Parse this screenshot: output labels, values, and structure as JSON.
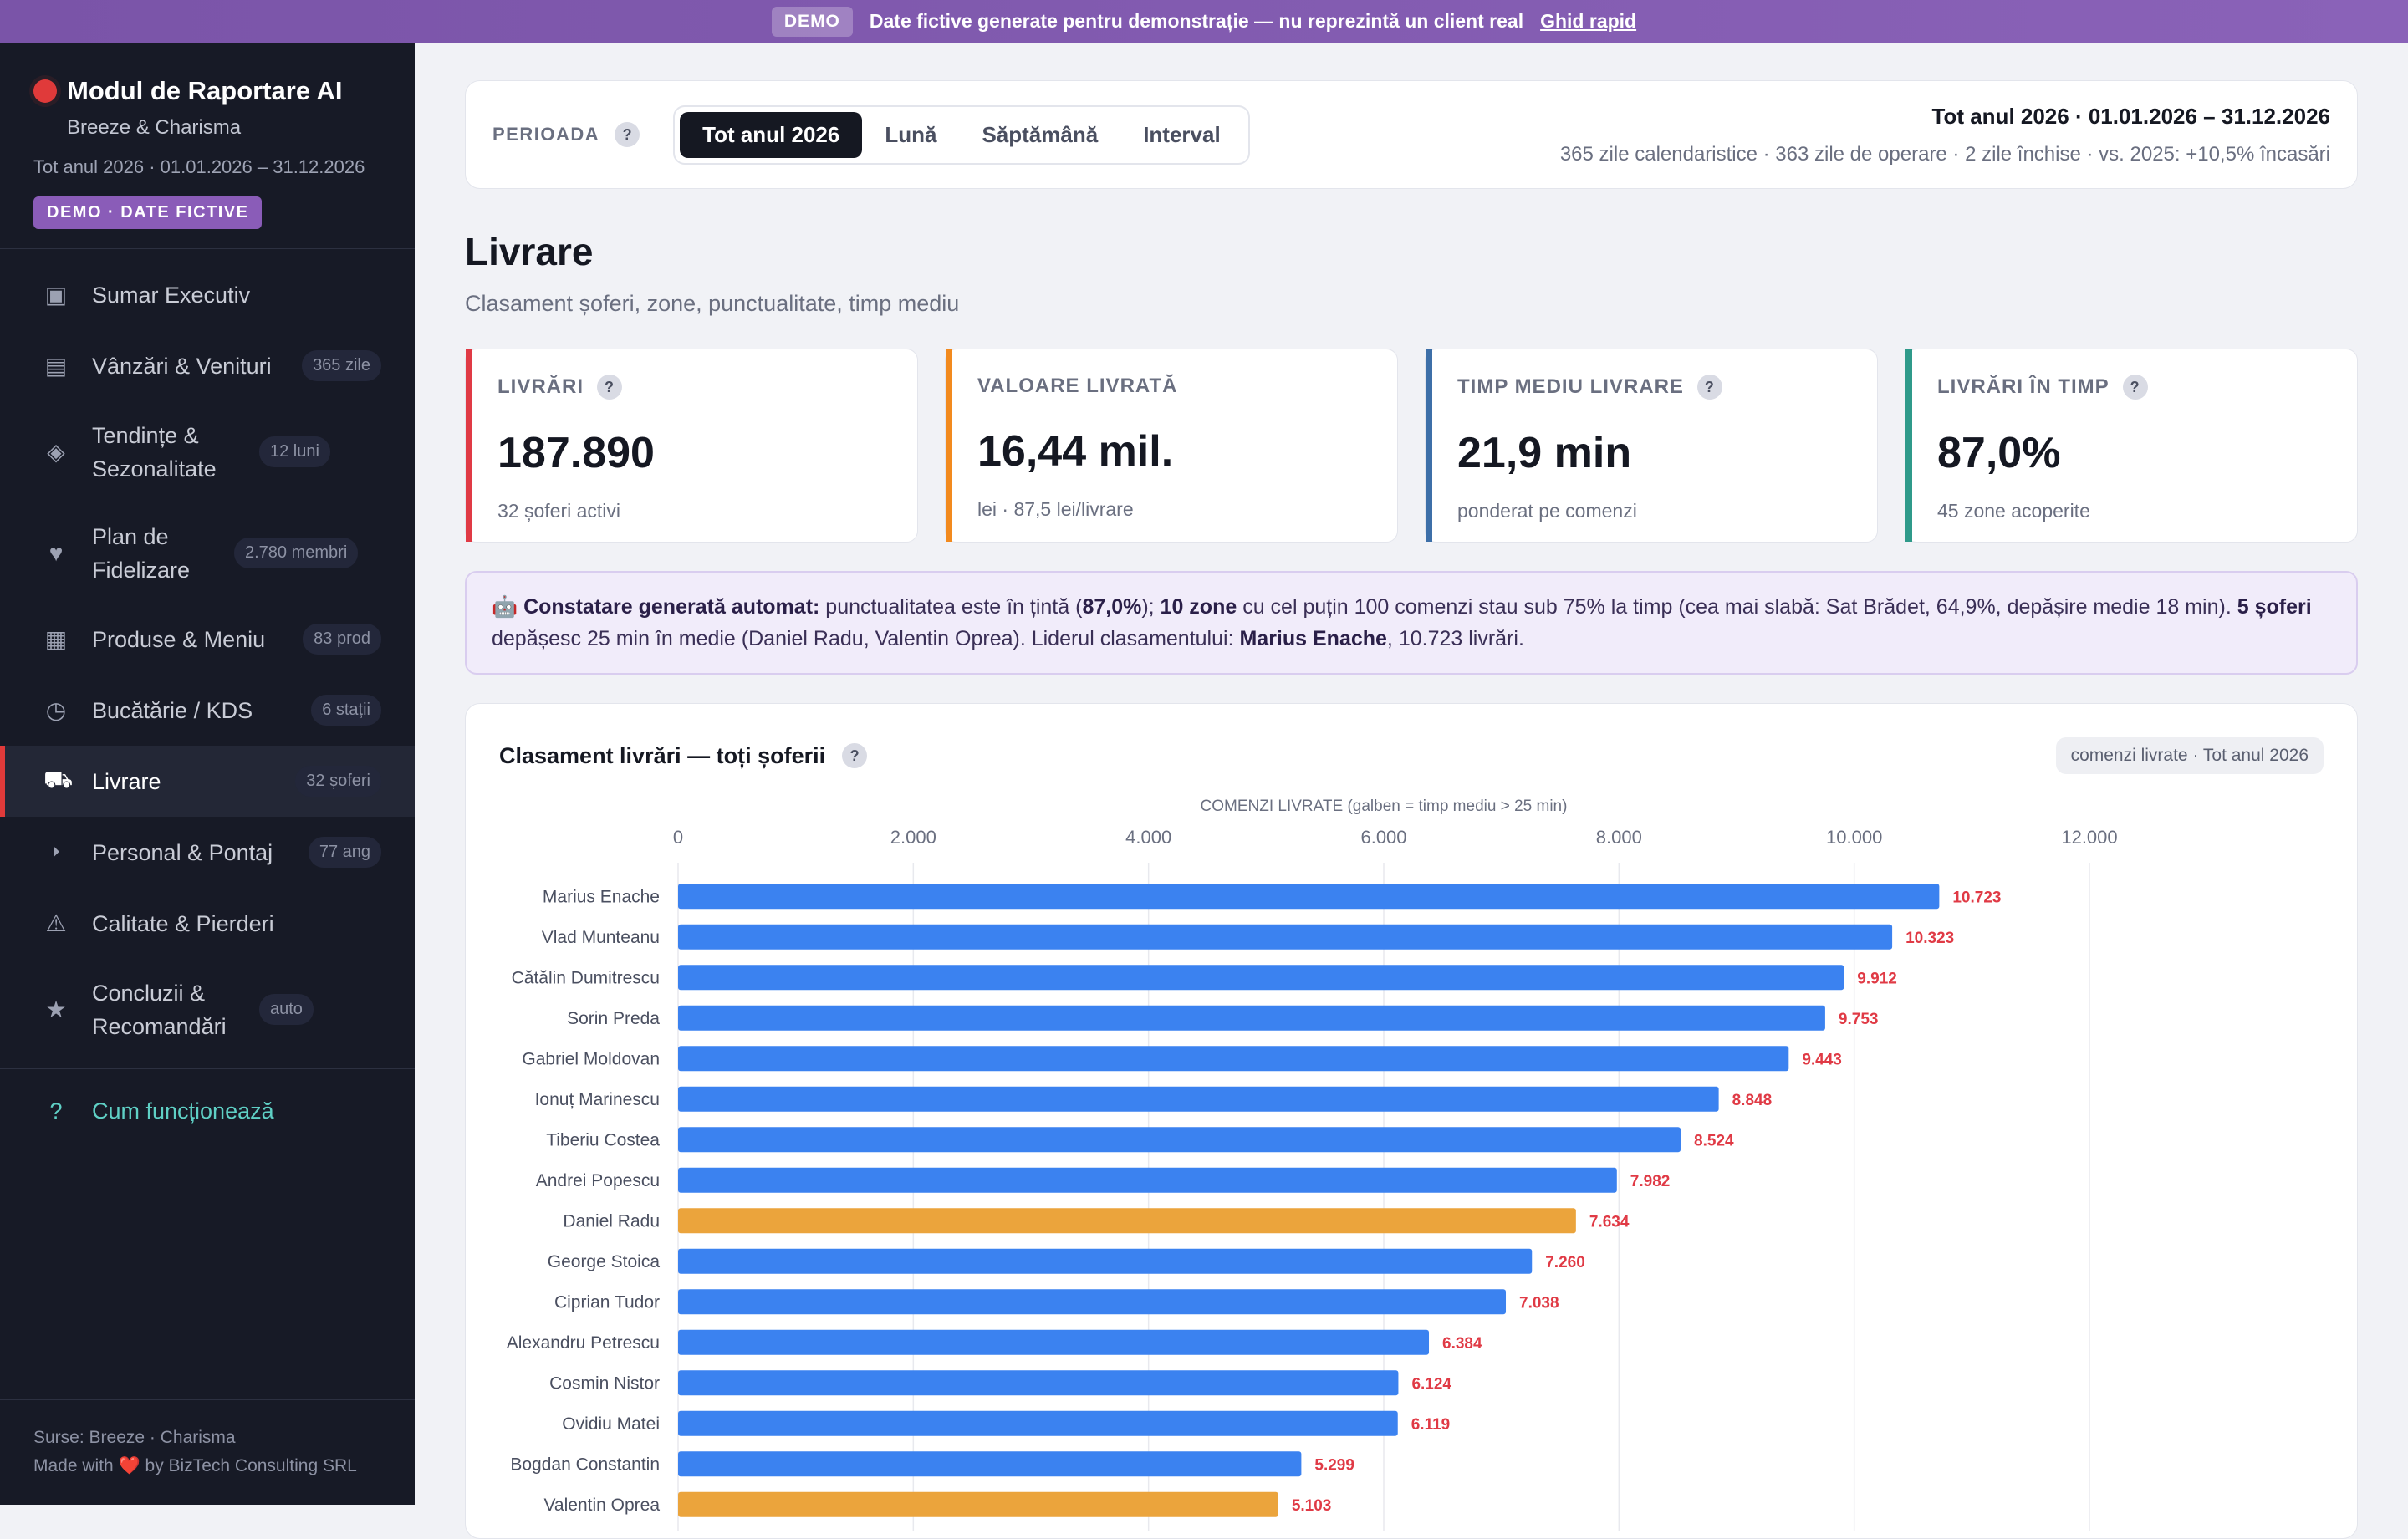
{
  "banner": {
    "demo_label": "DEMO",
    "message": "Date fictive generate pentru demonstrație — nu reprezintă un client real",
    "guide_link": "Ghid rapid"
  },
  "sidebar": {
    "title": "Modul de Raportare AI",
    "subtitle": "Breeze & Charisma",
    "period": "Tot anul 2026 · 01.01.2026 – 31.12.2026",
    "badge": "DEMO · DATE FICTIVE",
    "items": [
      {
        "label": "Sumar Executiv",
        "badge": "",
        "icon": "▣"
      },
      {
        "label": "Vânzări & Venituri",
        "badge": "365 zile",
        "icon": "▤"
      },
      {
        "label": "Tendințe & Sezonalitate",
        "badge": "12 luni",
        "icon": "◈"
      },
      {
        "label": "Plan de Fidelizare",
        "badge": "2.780 membri",
        "icon": "♥"
      },
      {
        "label": "Produse & Meniu",
        "badge": "83 prod",
        "icon": "▦"
      },
      {
        "label": "Bucătărie / KDS",
        "badge": "6 stații",
        "icon": "◷"
      },
      {
        "label": "Livrare",
        "badge": "32 șoferi",
        "icon": "⛟"
      },
      {
        "label": "Personal & Pontaj",
        "badge": "77 ang",
        "icon": "⏵"
      },
      {
        "label": "Calitate & Pierderi",
        "badge": "",
        "icon": "⚠"
      },
      {
        "label": "Concluzii & Recomandări",
        "badge": "auto",
        "icon": "★"
      }
    ],
    "help_label": "Cum funcționează",
    "footer_sources": "Surse: Breeze · Charisma",
    "footer_made": "Made with ❤️ by BizTech Consulting SRL"
  },
  "period": {
    "label": "PERIOADA",
    "options": [
      "Tot anul 2026",
      "Lună",
      "Săptămână",
      "Interval"
    ],
    "selected": "Tot anul 2026",
    "range": "Tot anul 2026 · 01.01.2026 – 31.12.2026",
    "meta": "365 zile calendaristice · 363 zile de operare · 2 zile închise · vs. 2025: +10,5% încasări"
  },
  "page": {
    "title": "Livrare",
    "subtitle": "Clasament șoferi, zone, punctualitate, timp mediu"
  },
  "kpis": [
    {
      "label": "LIVRĂRI",
      "value": "187.890",
      "sub": "32 șoferi activi",
      "accent": "#e03a45",
      "help": true
    },
    {
      "label": "VALOARE LIVRATĂ",
      "value": "16,44 mil.",
      "sub": "lei · 87,5 lei/livrare",
      "accent": "#f28a1e",
      "help": false
    },
    {
      "label": "TIMP MEDIU LIVRARE",
      "value": "21,9 min",
      "sub": "ponderat pe comenzi",
      "accent": "#3d6fa8",
      "help": true
    },
    {
      "label": "LIVRĂRI ÎN TIMP",
      "value": "87,0%",
      "sub": "45 zone acoperite",
      "accent": "#2f9a8a",
      "help": true
    }
  ],
  "insight": {
    "emoji": "🤖",
    "lead": "Constatare generată automat:",
    "t1": " punctualitatea este în țintă (",
    "b1": "87,0%",
    "t2": "); ",
    "b2": "10 zone",
    "t3": " cu cel puțin 100 comenzi stau sub 75% la timp (cea mai slabă: Sat Brădet, 64,9%, depășire medie 18 min). ",
    "b3": "5 șoferi",
    "t4": " depășesc 25 min în medie (Daniel Radu, Valentin Oprea). Liderul clasamentului: ",
    "b4": "Marius Enache",
    "t5": ", 10.723 livrări."
  },
  "chart_card": {
    "title": "Clasament livrări — toți șoferii",
    "tag": "comenzi livrate · Tot anul 2026"
  },
  "chart_data": {
    "type": "bar",
    "orientation": "horizontal",
    "axis_title": "COMENZI LIVRATE (galben = timp mediu > 25 min)",
    "xlim": [
      0,
      12000
    ],
    "ticks": [
      0,
      2000,
      4000,
      6000,
      8000,
      10000,
      12000
    ],
    "tick_labels": [
      "0",
      "2.000",
      "4.000",
      "6.000",
      "8.000",
      "10.000",
      "12.000"
    ],
    "colors": {
      "normal": "#3b82f0",
      "slow": "#eba43c",
      "value_label": "#e03a45"
    },
    "categories": [
      "Marius Enache",
      "Vlad Munteanu",
      "Cătălin Dumitrescu",
      "Sorin Preda",
      "Gabriel Moldovan",
      "Ionuț Marinescu",
      "Tiberiu Costea",
      "Andrei Popescu",
      "Daniel Radu",
      "George Stoica",
      "Ciprian Tudor",
      "Alexandru Petrescu",
      "Cosmin Nistor",
      "Ovidiu Matei",
      "Bogdan Constantin",
      "Valentin Oprea"
    ],
    "values": [
      10723,
      10323,
      9912,
      9753,
      9443,
      8848,
      8524,
      7982,
      7634,
      7260,
      7038,
      6384,
      6124,
      6119,
      5299,
      5103
    ],
    "value_labels": [
      "10.723",
      "10.323",
      "9.912",
      "9.753",
      "9.443",
      "8.848",
      "8.524",
      "7.982",
      "7.634",
      "7.260",
      "7.038",
      "6.384",
      "6.124",
      "6.119",
      "5.299",
      "5.103"
    ],
    "slow": [
      false,
      false,
      false,
      false,
      false,
      false,
      false,
      false,
      true,
      false,
      false,
      false,
      false,
      false,
      false,
      true
    ]
  }
}
